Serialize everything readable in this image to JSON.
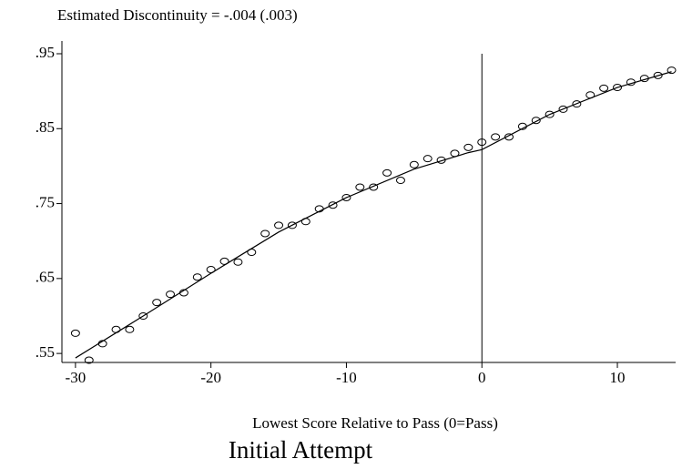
{
  "chart_data": {
    "type": "scatter",
    "title": "Estimated Discontinuity = -.004 (.003)",
    "x_label": "Lowest Score Relative to Pass (0=Pass)",
    "caption": "Initial Attempt",
    "xlim": [
      -31,
      14.3
    ],
    "ylim": [
      0.538,
      0.967
    ],
    "xticks": [
      -30,
      -20,
      -10,
      0,
      10
    ],
    "yticks": [
      {
        "value": 0.55,
        "label": ".55"
      },
      {
        "value": 0.65,
        "label": ".65"
      },
      {
        "value": 0.75,
        "label": ".75"
      },
      {
        "value": 0.85,
        "label": ".85"
      },
      {
        "value": 0.95,
        "label": ".95"
      }
    ],
    "vline": 0,
    "series": [
      {
        "kind": "points",
        "color": "#000000",
        "x": [
          -30,
          -29,
          -28,
          -27,
          -26,
          -25,
          -24,
          -23,
          -22,
          -21,
          -20,
          -19,
          -18,
          -17,
          -16,
          -15,
          -14,
          -13,
          -12,
          -11,
          -10,
          -9,
          -8,
          -7,
          -6,
          -5,
          -4,
          -3,
          -2,
          -1,
          0,
          1,
          2,
          3,
          4,
          5,
          6,
          7,
          8,
          9,
          10,
          11,
          12,
          13,
          14
        ],
        "values": [
          0.577,
          0.541,
          0.563,
          0.582,
          0.582,
          0.6,
          0.618,
          0.629,
          0.631,
          0.652,
          0.662,
          0.673,
          0.672,
          0.685,
          0.71,
          0.721,
          0.721,
          0.726,
          0.743,
          0.748,
          0.758,
          0.772,
          0.772,
          0.791,
          0.781,
          0.802,
          0.81,
          0.808,
          0.817,
          0.825,
          0.832,
          0.839,
          0.839,
          0.853,
          0.861,
          0.869,
          0.876,
          0.883,
          0.895,
          0.904,
          0.905,
          0.912,
          0.917,
          0.921,
          0.928
        ]
      },
      {
        "kind": "fit",
        "color": "#000000",
        "x": [
          -30,
          -25,
          -20,
          -15,
          -10,
          -5,
          -1,
          0,
          5,
          10,
          14
        ],
        "values": [
          0.544,
          0.6,
          0.657,
          0.712,
          0.758,
          0.796,
          0.818,
          0.822,
          0.869,
          0.905,
          0.926
        ]
      }
    ]
  }
}
